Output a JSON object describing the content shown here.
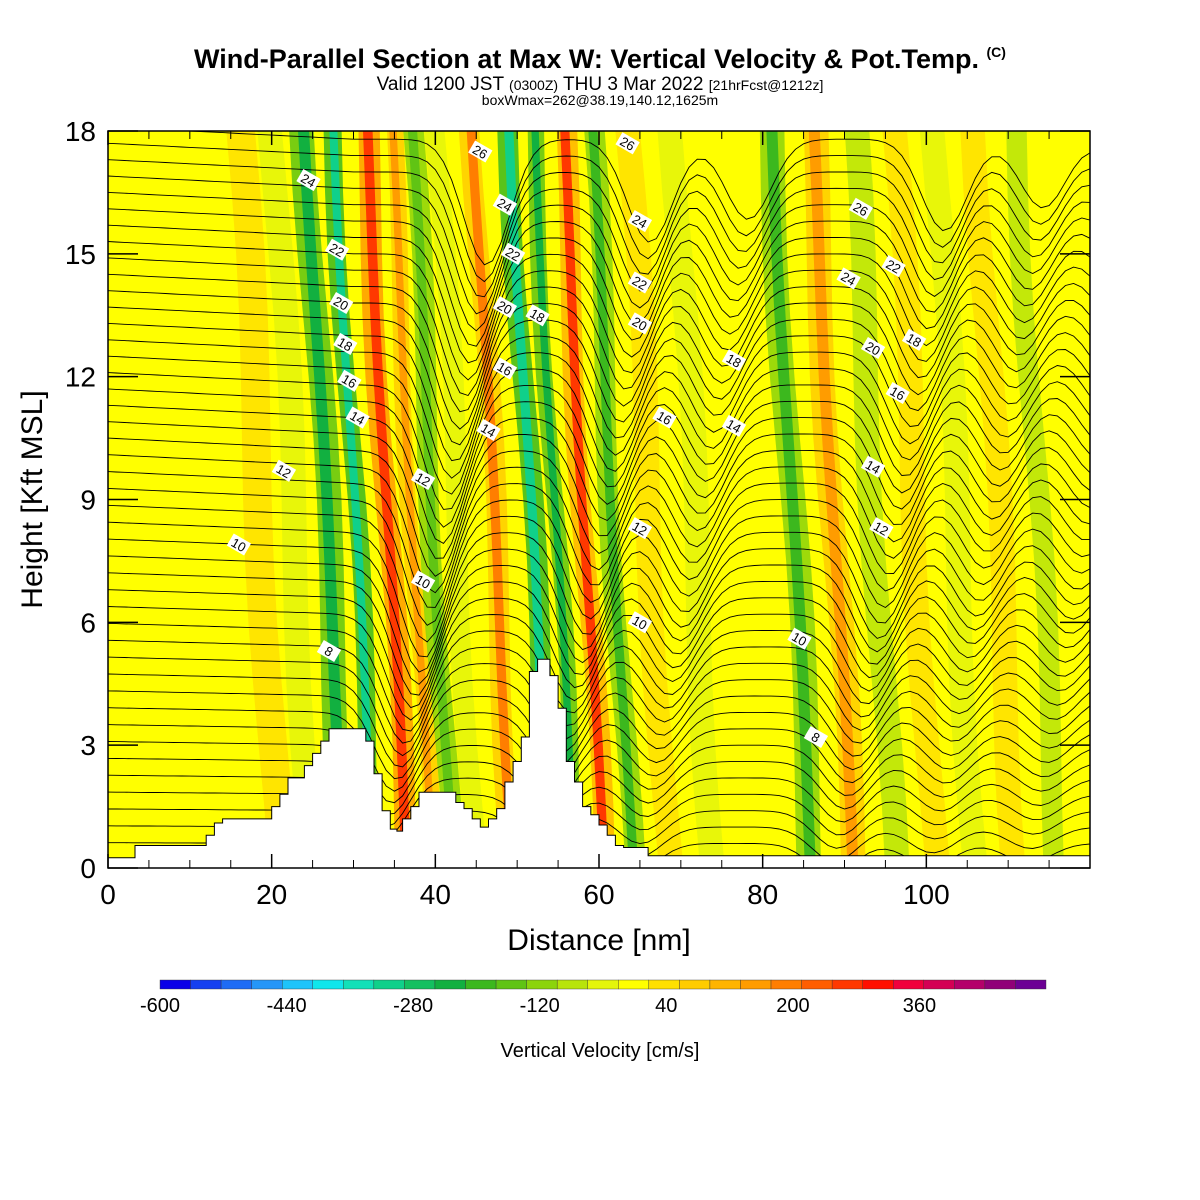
{
  "header": {
    "title": "Wind-Parallel Section at Max W: Vertical Velocity & Pot.Temp.",
    "copyright": "(C)",
    "valid_prefix": "Valid 1200 JST",
    "valid_utc": "(0300Z)",
    "valid_date": "THU 3 Mar 2022",
    "forecast": "[21hrFcst@1212z]",
    "boxwmax": "boxWmax=262@38.19,140.12,1625m"
  },
  "chart_data": {
    "type": "heatmap",
    "xlabel": "Distance [nm]",
    "ylabel": "Height [Kft MSL]",
    "xlim": [
      0,
      120
    ],
    "ylim": [
      0,
      18
    ],
    "x_ticks": [
      0,
      20,
      40,
      60,
      80,
      100
    ],
    "y_ticks": [
      0,
      3,
      6,
      9,
      12,
      15,
      18
    ],
    "grid": false,
    "colorbar": {
      "label": "Vertical Velocity [cm/s]",
      "placement": "bottom",
      "range": [
        -600,
        520
      ],
      "step": 40,
      "tick_labels": [
        -600,
        -440,
        -280,
        -120,
        40,
        200,
        360
      ],
      "colors": [
        "#0a00e8",
        "#1540f0",
        "#1e6cf5",
        "#2596f8",
        "#1ec4fa",
        "#10e6ec",
        "#12e0b8",
        "#10d08a",
        "#14c060",
        "#12b040",
        "#3cb81e",
        "#60c414",
        "#8cd40c",
        "#b8e40a",
        "#e4f50a",
        "#ffff00",
        "#ffe000",
        "#ffcc00",
        "#ffb400",
        "#ff9c00",
        "#ff7e00",
        "#ff5e00",
        "#ff3800",
        "#ff1000",
        "#f0003c",
        "#d40054",
        "#b4006a",
        "#900078",
        "#6c0094"
      ]
    },
    "vertical_velocity_bands": [
      {
        "x": 2,
        "w": 5,
        "value": 30
      },
      {
        "x": 13,
        "w": 3.5,
        "value": 70
      },
      {
        "x": 21,
        "w": 3.5,
        "value": 80
      },
      {
        "x": 25,
        "w": 3,
        "value": -60
      },
      {
        "x": 29,
        "w": 3,
        "value": -240
      },
      {
        "x": 32.5,
        "w": 2.2,
        "value": -300
      },
      {
        "x": 36.5,
        "w": 2.6,
        "value": 300
      },
      {
        "x": 39.5,
        "w": 2,
        "value": 160
      },
      {
        "x": 42,
        "w": 2.5,
        "value": -160
      },
      {
        "x": 45,
        "w": 2.5,
        "value": -60
      },
      {
        "x": 49.5,
        "w": 2.5,
        "value": 200
      },
      {
        "x": 54,
        "w": 2.5,
        "value": -300
      },
      {
        "x": 57,
        "w": 2,
        "value": -220
      },
      {
        "x": 60.5,
        "w": 2.5,
        "value": 280
      },
      {
        "x": 64,
        "w": 2.5,
        "value": -200
      },
      {
        "x": 68.5,
        "w": 3,
        "value": 100
      },
      {
        "x": 74,
        "w": 3,
        "value": -60
      },
      {
        "x": 79,
        "w": 3,
        "value": 60
      },
      {
        "x": 86,
        "w": 3,
        "value": -200
      },
      {
        "x": 91,
        "w": 3,
        "value": 160
      },
      {
        "x": 96,
        "w": 3,
        "value": -100
      },
      {
        "x": 101,
        "w": 3,
        "value": 120
      },
      {
        "x": 106,
        "w": 3,
        "value": -60
      },
      {
        "x": 111,
        "w": 3,
        "value": 100
      },
      {
        "x": 116,
        "w": 2.5,
        "value": -120
      }
    ],
    "terrain": [
      {
        "x": 0,
        "h": 0.25
      },
      {
        "x": 3.3,
        "h": 0.55
      },
      {
        "x": 12,
        "h": 0.8
      },
      {
        "x": 13,
        "h": 1.1
      },
      {
        "x": 14,
        "h": 1.2
      },
      {
        "x": 20,
        "h": 1.5
      },
      {
        "x": 21,
        "h": 1.8
      },
      {
        "x": 22,
        "h": 2.2
      },
      {
        "x": 24,
        "h": 2.5
      },
      {
        "x": 25,
        "h": 2.8
      },
      {
        "x": 26,
        "h": 3.1
      },
      {
        "x": 27,
        "h": 3.4
      },
      {
        "x": 31.5,
        "h": 3.1
      },
      {
        "x": 32.5,
        "h": 2.3
      },
      {
        "x": 33.5,
        "h": 1.4
      },
      {
        "x": 34.5,
        "h": 0.95
      },
      {
        "x": 35.3,
        "h": 0.9
      },
      {
        "x": 36,
        "h": 1.2
      },
      {
        "x": 37,
        "h": 1.5
      },
      {
        "x": 38,
        "h": 1.85
      },
      {
        "x": 42.5,
        "h": 1.6
      },
      {
        "x": 43.5,
        "h": 1.45
      },
      {
        "x": 44.5,
        "h": 1.2
      },
      {
        "x": 45.5,
        "h": 1.0
      },
      {
        "x": 46.5,
        "h": 1.2
      },
      {
        "x": 47.5,
        "h": 1.45
      },
      {
        "x": 48.5,
        "h": 2.1
      },
      {
        "x": 49.5,
        "h": 2.6
      },
      {
        "x": 50.5,
        "h": 3.2
      },
      {
        "x": 51.5,
        "h": 4.8
      },
      {
        "x": 52.5,
        "h": 5.1
      },
      {
        "x": 54,
        "h": 4.7
      },
      {
        "x": 55,
        "h": 3.9
      },
      {
        "x": 56,
        "h": 2.6
      },
      {
        "x": 57,
        "h": 2.1
      },
      {
        "x": 58,
        "h": 1.5
      },
      {
        "x": 59,
        "h": 1.3
      },
      {
        "x": 60,
        "h": 1.05
      },
      {
        "x": 61,
        "h": 0.8
      },
      {
        "x": 62,
        "h": 0.55
      },
      {
        "x": 63,
        "h": 0.5
      },
      {
        "x": 66,
        "h": 0.3
      },
      {
        "x": 120,
        "h": 0.3
      }
    ],
    "theta_contour_labels": [
      {
        "value": 24,
        "x": 24.5,
        "y": 16.8
      },
      {
        "value": 22,
        "x": 28.0,
        "y": 15.1
      },
      {
        "value": 20,
        "x": 28.5,
        "y": 13.8
      },
      {
        "value": 18,
        "x": 29.0,
        "y": 12.8
      },
      {
        "value": 16,
        "x": 29.5,
        "y": 11.9
      },
      {
        "value": 14,
        "x": 30.5,
        "y": 11.0
      },
      {
        "value": 12,
        "x": 21.5,
        "y": 9.7
      },
      {
        "value": 10,
        "x": 16.0,
        "y": 7.9
      },
      {
        "value": 8,
        "x": 27.0,
        "y": 5.3
      },
      {
        "value": 12,
        "x": 38.5,
        "y": 9.5
      },
      {
        "value": 10,
        "x": 38.5,
        "y": 7.0
      },
      {
        "value": 26,
        "x": 45.5,
        "y": 17.5
      },
      {
        "value": 24,
        "x": 48.5,
        "y": 16.2
      },
      {
        "value": 22,
        "x": 49.5,
        "y": 15.0
      },
      {
        "value": 20,
        "x": 48.5,
        "y": 13.7
      },
      {
        "value": 18,
        "x": 52.5,
        "y": 13.5
      },
      {
        "value": 16,
        "x": 48.5,
        "y": 12.2
      },
      {
        "value": 14,
        "x": 46.5,
        "y": 10.7
      },
      {
        "value": 26,
        "x": 63.5,
        "y": 17.7
      },
      {
        "value": 24,
        "x": 65.0,
        "y": 15.8
      },
      {
        "value": 22,
        "x": 65.0,
        "y": 14.3
      },
      {
        "value": 20,
        "x": 65.0,
        "y": 13.3
      },
      {
        "value": 16,
        "x": 68.0,
        "y": 11.0
      },
      {
        "value": 14,
        "x": 76.5,
        "y": 10.8
      },
      {
        "value": 18,
        "x": 76.5,
        "y": 12.4
      },
      {
        "value": 12,
        "x": 65.0,
        "y": 8.3
      },
      {
        "value": 10,
        "x": 65.0,
        "y": 6.0
      },
      {
        "value": 10,
        "x": 84.5,
        "y": 5.6
      },
      {
        "value": 8,
        "x": 86.5,
        "y": 3.2
      },
      {
        "value": 26,
        "x": 92.0,
        "y": 16.1
      },
      {
        "value": 24,
        "x": 90.5,
        "y": 14.4
      },
      {
        "value": 22,
        "x": 96.0,
        "y": 14.7
      },
      {
        "value": 20,
        "x": 93.5,
        "y": 12.7
      },
      {
        "value": 18,
        "x": 98.5,
        "y": 12.9
      },
      {
        "value": 16,
        "x": 96.5,
        "y": 11.6
      },
      {
        "value": 14,
        "x": 93.5,
        "y": 9.8
      },
      {
        "value": 12,
        "x": 94.5,
        "y": 8.3
      }
    ]
  }
}
